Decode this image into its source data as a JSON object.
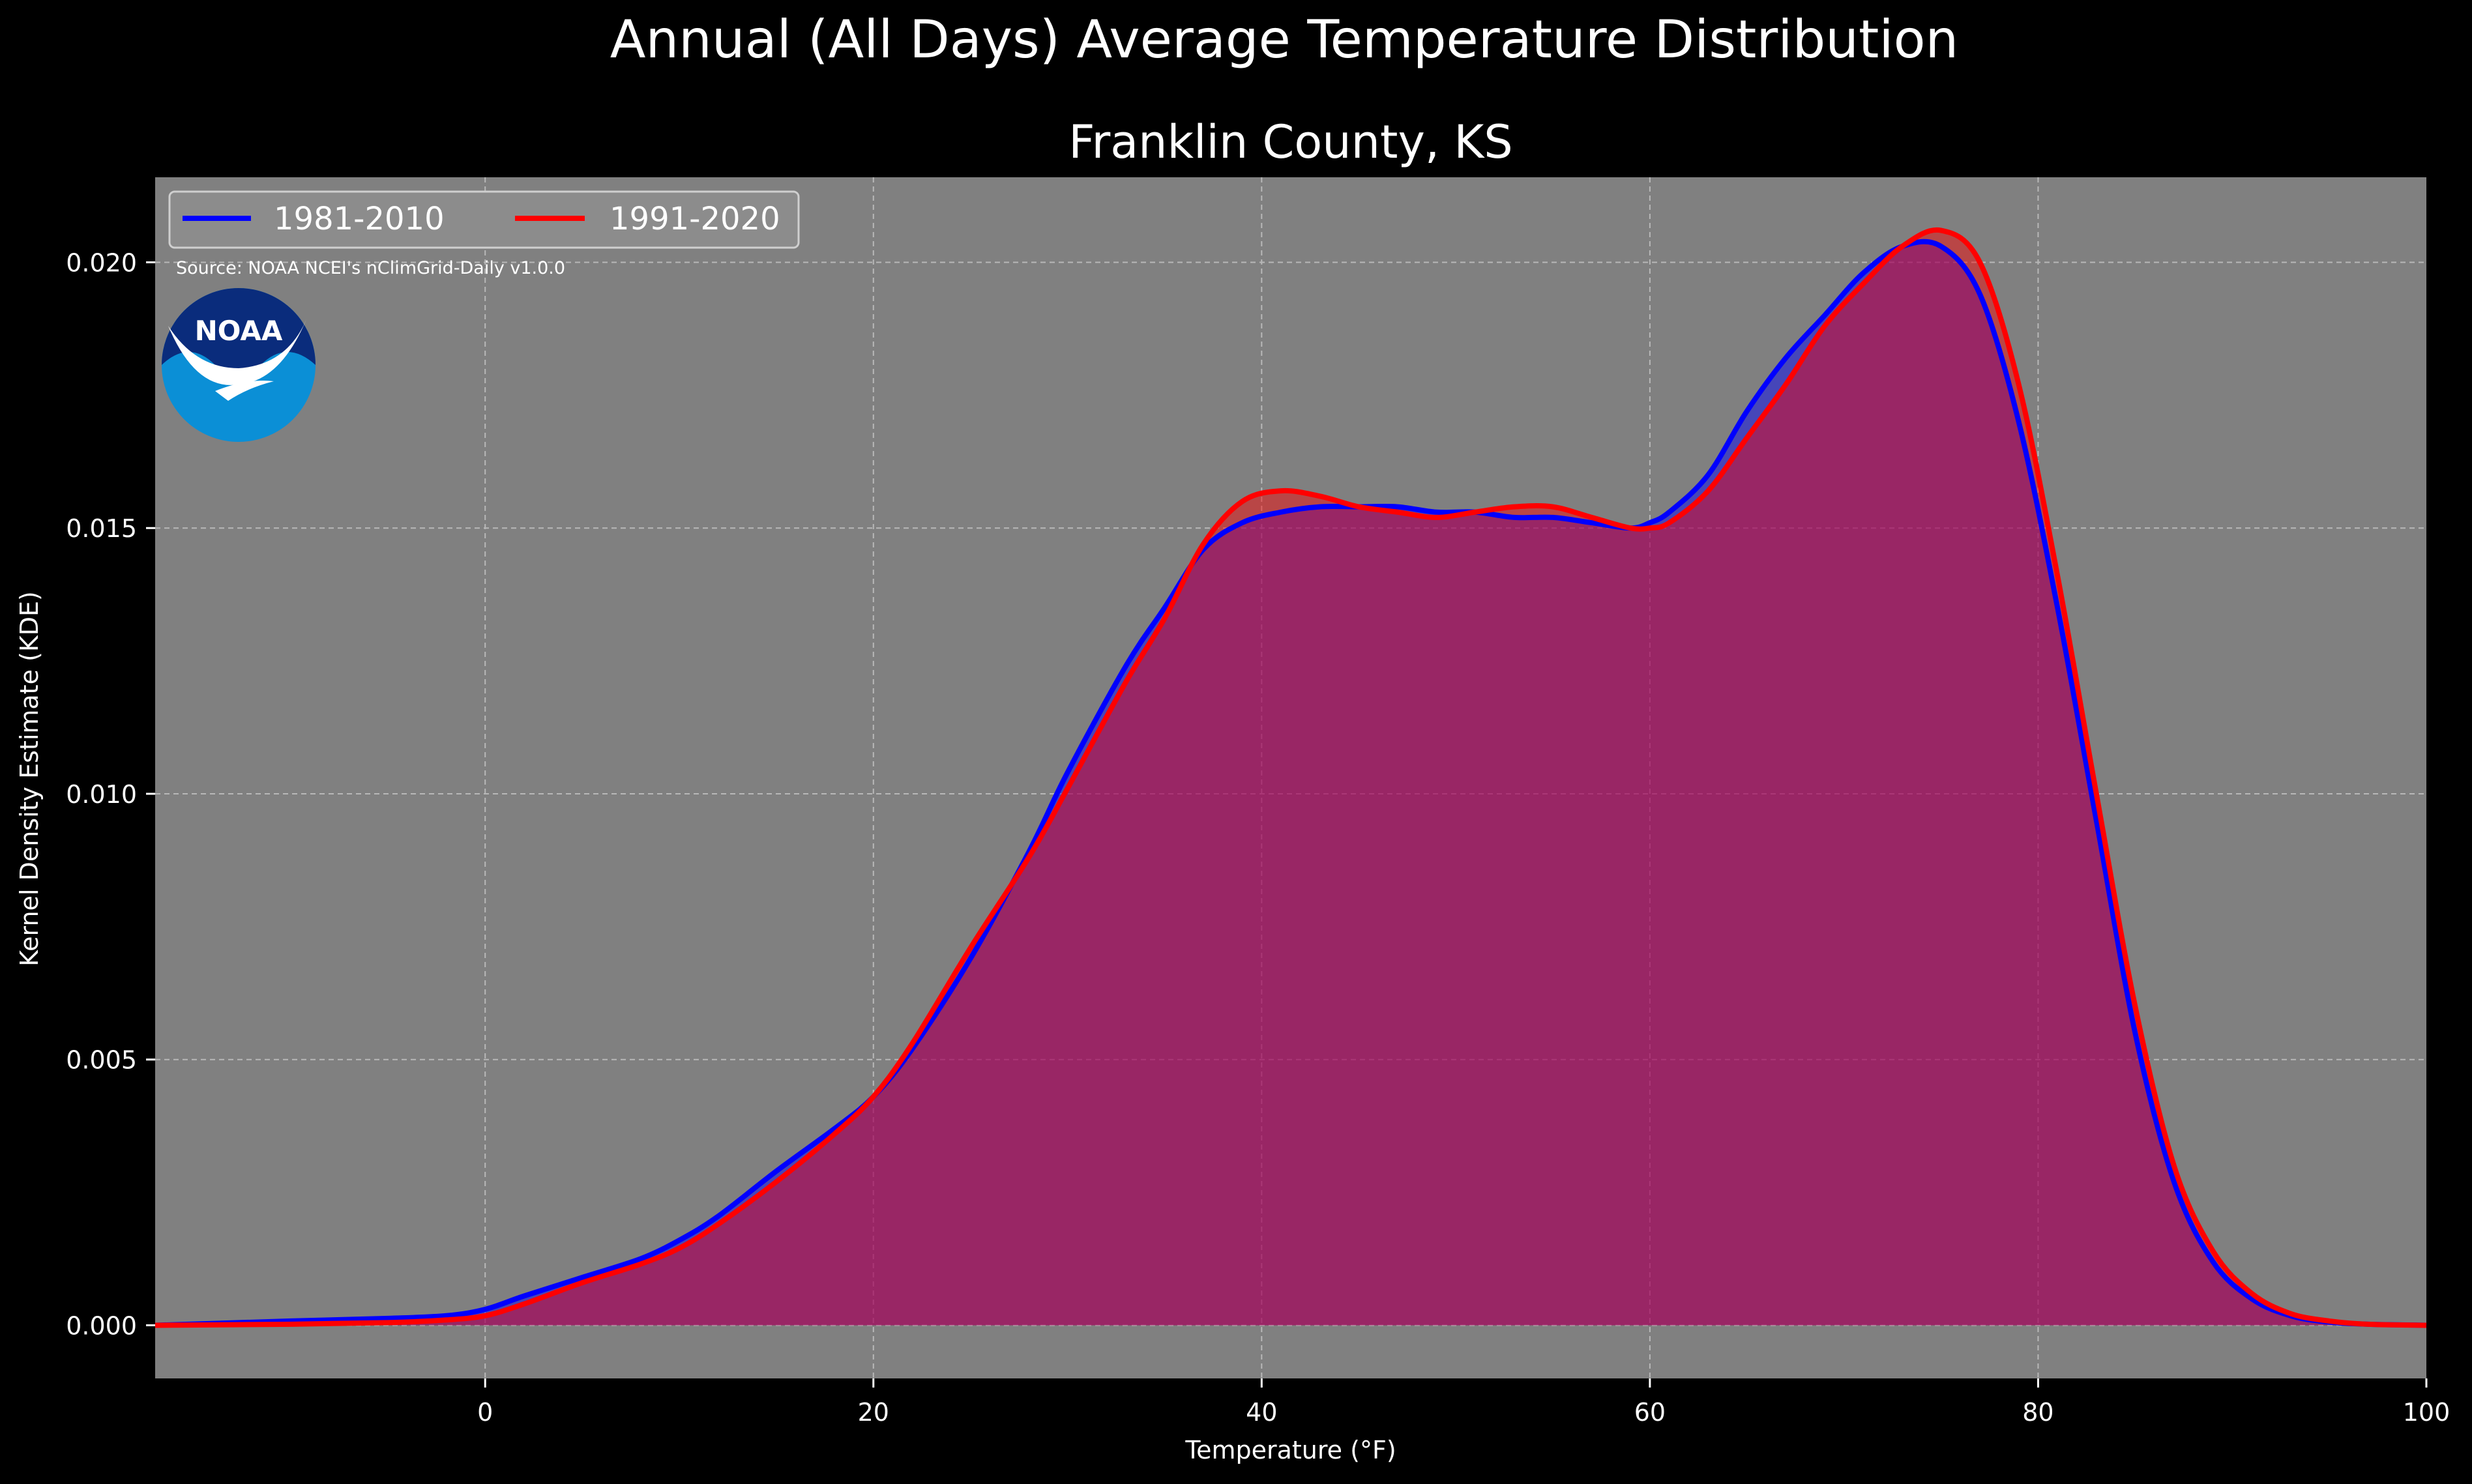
{
  "chart_data": {
    "type": "area",
    "title": "Annual (All Days) Average Temperature Distribution",
    "subtitle": "Franklin County, KS",
    "xlabel": "Temperature ($^\\circ$F)",
    "xlabel_display": "Temperature (°F)",
    "ylabel": "Kernel Density Estimate (KDE)",
    "source": "Source: NOAA NCEI's nClimGrid-Daily v1.0.0",
    "logo_text": "NOAA",
    "xlim": [
      -17,
      100
    ],
    "ylim": [
      -0.001,
      0.0216
    ],
    "x_ticks": [
      0,
      20,
      40,
      60,
      80,
      100
    ],
    "y_ticks": [
      0.0,
      0.005,
      0.01,
      0.015,
      0.02
    ],
    "y_tick_labels": [
      "0.000",
      "0.005",
      "0.010",
      "0.015",
      "0.020"
    ],
    "grid": true,
    "legend_position": "top-left",
    "background": "#808080",
    "series": [
      {
        "name": "1981-2010",
        "color": "#0000ff",
        "fill": "#6a1a8f",
        "x": [
          -17,
          -10,
          -5,
          -2,
          0,
          2,
          5,
          8,
          10,
          12,
          15,
          18,
          20,
          22,
          25,
          28,
          30,
          33,
          35,
          37,
          39,
          41,
          43,
          45,
          47,
          49,
          51,
          53,
          55,
          57,
          59,
          60,
          61,
          63,
          65,
          67,
          69,
          71,
          73,
          75,
          77,
          79,
          81,
          83,
          85,
          87,
          89,
          91,
          93,
          95,
          97,
          100
        ],
        "y": [
          0.0,
          8e-05,
          0.00013,
          0.00018,
          0.0003,
          0.00055,
          0.0009,
          0.00125,
          0.0016,
          0.00205,
          0.0029,
          0.0037,
          0.0043,
          0.0052,
          0.0069,
          0.0089,
          0.0104,
          0.0124,
          0.0135,
          0.0146,
          0.0151,
          0.0153,
          0.0154,
          0.0154,
          0.0154,
          0.0153,
          0.0153,
          0.0152,
          0.0152,
          0.0151,
          0.015,
          0.0151,
          0.0153,
          0.016,
          0.0172,
          0.0182,
          0.019,
          0.0198,
          0.0203,
          0.0203,
          0.0194,
          0.017,
          0.0135,
          0.0095,
          0.0055,
          0.0027,
          0.0012,
          0.0005,
          0.00018,
          6e-05,
          2e-05,
          0.0
        ]
      },
      {
        "name": "1991-2020",
        "color": "#ff0000",
        "fill": "#c0142e",
        "x": [
          -17,
          -10,
          -5,
          -2,
          0,
          2,
          5,
          8,
          10,
          12,
          15,
          18,
          20,
          22,
          25,
          28,
          30,
          33,
          35,
          37,
          39,
          41,
          43,
          45,
          47,
          49,
          51,
          53,
          55,
          57,
          59,
          60,
          61,
          63,
          65,
          67,
          69,
          71,
          73,
          75,
          77,
          79,
          81,
          83,
          85,
          87,
          89,
          91,
          93,
          95,
          97,
          100
        ],
        "y": [
          0.0,
          2e-05,
          5e-05,
          0.0001,
          0.00018,
          0.0004,
          0.0008,
          0.00115,
          0.00145,
          0.0019,
          0.0027,
          0.0036,
          0.0043,
          0.0053,
          0.0071,
          0.0088,
          0.0101,
          0.0121,
          0.0133,
          0.0147,
          0.0155,
          0.0157,
          0.0156,
          0.0154,
          0.0153,
          0.0152,
          0.0153,
          0.0154,
          0.0154,
          0.0152,
          0.015,
          0.015,
          0.0151,
          0.0157,
          0.0167,
          0.0177,
          0.0188,
          0.0196,
          0.0203,
          0.0206,
          0.02,
          0.0177,
          0.0141,
          0.01,
          0.006,
          0.003,
          0.0014,
          0.0006,
          0.00022,
          8e-05,
          2e-05,
          0.0
        ]
      }
    ]
  }
}
